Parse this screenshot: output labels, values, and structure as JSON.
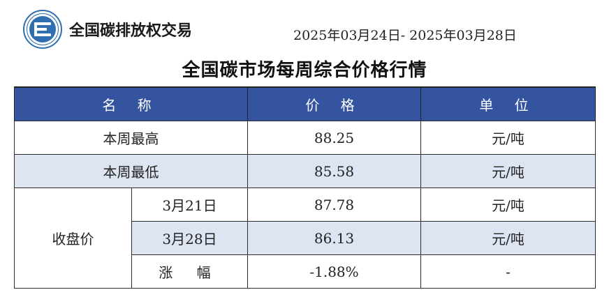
{
  "header": {
    "logo_text": "全国碳排放权交易",
    "date_range": "2025年03月24日- 2025年03月28日",
    "title": "全国碳市场每周综合价格行情",
    "colors": {
      "header_bg": "#3454a0",
      "row_shade": "#dde4f2",
      "logo_blue": "#2f6fb0"
    }
  },
  "table": {
    "columns": [
      "名 称",
      "价 格",
      "单 位"
    ],
    "rows": {
      "weekly_high": {
        "label": "本周最高",
        "price": "88.25",
        "unit": "元/吨"
      },
      "weekly_low": {
        "label": "本周最低",
        "price": "85.58",
        "unit": "元/吨"
      },
      "closing": {
        "label": "收盘价",
        "sub": [
          {
            "label": "3月21日",
            "price": "87.78",
            "unit": "元/吨"
          },
          {
            "label": "3月28日",
            "price": "86.13",
            "unit": "元/吨"
          },
          {
            "label": "涨 幅",
            "price": "-1.88%",
            "unit": "-"
          }
        ]
      }
    }
  }
}
